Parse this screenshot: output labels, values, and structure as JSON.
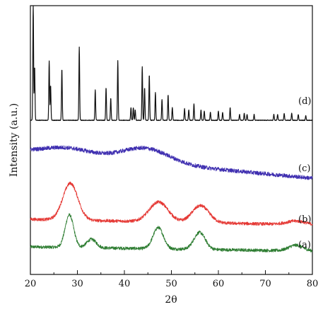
{
  "chart_data": {
    "type": "line",
    "xlabel": "2θ",
    "ylabel": "Intensity (a.u.)",
    "xlim": [
      20,
      80
    ],
    "xticks": [
      "20",
      "30",
      "40",
      "50",
      "60",
      "70",
      "80"
    ],
    "yticks_shown": false,
    "grid": false,
    "legend": "none (series labelled inline at right)",
    "series": [
      {
        "name": "(a)",
        "color": "#2e7d32",
        "noise": 0.7,
        "baseline": [
          [
            20,
            16
          ],
          [
            80,
            10
          ]
        ],
        "peaks": [
          [
            28.3,
            46,
            0.9
          ],
          [
            33.0,
            12,
            1.0
          ],
          [
            47.2,
            30,
            1.1
          ],
          [
            56.0,
            24,
            1.2
          ],
          [
            76.5,
            8,
            1.5
          ]
        ]
      },
      {
        "name": "(b)",
        "color": "#e53935",
        "noise": 0.7,
        "baseline": [
          [
            20,
            30
          ],
          [
            80,
            22
          ]
        ],
        "peaks": [
          [
            28.5,
            52,
            1.6
          ],
          [
            47.3,
            28,
            2.0
          ],
          [
            56.2,
            24,
            1.8
          ],
          [
            76.5,
            5,
            2.0
          ]
        ]
      },
      {
        "name": "(c)",
        "color": "#3f2fb0",
        "noise": 0.9,
        "baseline": [
          [
            20,
            58
          ],
          [
            80,
            20
          ]
        ],
        "peaks": [
          [
            28.0,
            10,
            5.0
          ],
          [
            44.5,
            20,
            5.0
          ]
        ]
      },
      {
        "name": "(d)",
        "color": "#111111",
        "noise": 0.25,
        "baseline": [
          [
            20,
            3
          ],
          [
            80,
            3
          ]
        ],
        "peaks": [
          [
            20.6,
            100,
            0.08
          ],
          [
            20.9,
            46,
            0.08
          ],
          [
            24.0,
            51,
            0.08
          ],
          [
            24.3,
            30,
            0.08
          ],
          [
            26.7,
            44,
            0.08
          ],
          [
            30.4,
            63,
            0.08
          ],
          [
            33.8,
            26,
            0.08
          ],
          [
            36.1,
            28,
            0.08
          ],
          [
            37.1,
            19,
            0.08
          ],
          [
            38.6,
            51,
            0.08
          ],
          [
            41.4,
            11,
            0.08
          ],
          [
            41.9,
            11,
            0.08
          ],
          [
            42.3,
            9,
            0.08
          ],
          [
            43.8,
            46,
            0.08
          ],
          [
            44.3,
            28,
            0.08
          ],
          [
            45.3,
            39,
            0.08
          ],
          [
            46.6,
            24,
            0.08
          ],
          [
            48.0,
            18,
            0.08
          ],
          [
            49.3,
            22,
            0.08
          ],
          [
            50.2,
            11,
            0.08
          ],
          [
            52.8,
            10,
            0.08
          ],
          [
            53.7,
            9,
            0.08
          ],
          [
            54.8,
            14,
            0.08
          ],
          [
            56.3,
            9,
            0.08
          ],
          [
            57.0,
            8,
            0.08
          ],
          [
            58.3,
            7,
            0.08
          ],
          [
            60.0,
            8,
            0.08
          ],
          [
            60.9,
            7,
            0.08
          ],
          [
            62.5,
            11,
            0.08
          ],
          [
            64.5,
            5,
            0.08
          ],
          [
            65.5,
            6,
            0.08
          ],
          [
            66.1,
            5,
            0.08
          ],
          [
            67.6,
            5,
            0.08
          ],
          [
            71.8,
            5,
            0.08
          ],
          [
            72.6,
            5,
            0.08
          ],
          [
            74.0,
            6,
            0.08
          ],
          [
            75.6,
            6,
            0.08
          ],
          [
            77.0,
            5,
            0.08
          ],
          [
            78.6,
            4,
            0.08
          ]
        ]
      }
    ]
  }
}
